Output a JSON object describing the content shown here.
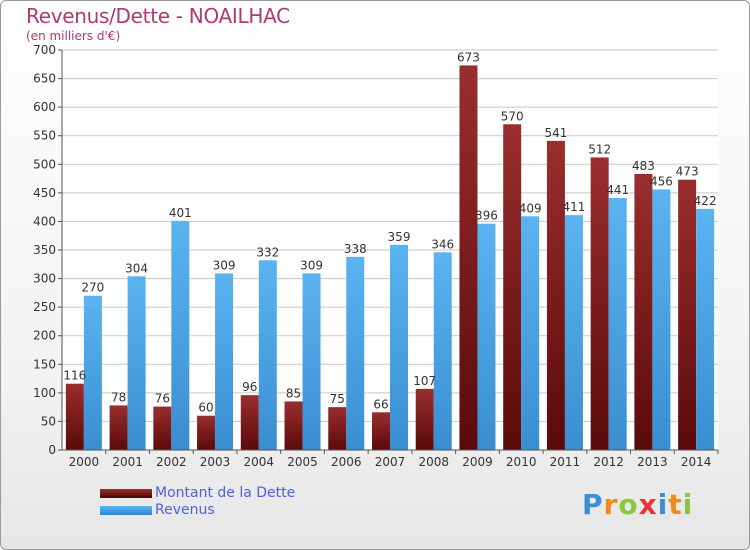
{
  "chart_data": {
    "type": "bar",
    "title": "Revenus/Dette - NOAILHAC",
    "subtitle": "(en milliers d'€)",
    "categories": [
      "2000",
      "2001",
      "2002",
      "2003",
      "2004",
      "2005",
      "2006",
      "2007",
      "2008",
      "2009",
      "2010",
      "2011",
      "2012",
      "2013",
      "2014"
    ],
    "series": [
      {
        "name": "Montant de la Dette",
        "color": "#7a1a1a",
        "values": [
          116,
          78,
          76,
          60,
          96,
          85,
          75,
          66,
          107,
          673,
          570,
          541,
          512,
          483,
          473
        ]
      },
      {
        "name": "Revenus",
        "color": "#4ba6e8",
        "values": [
          270,
          304,
          401,
          309,
          332,
          309,
          338,
          359,
          346,
          396,
          409,
          411,
          441,
          456,
          422
        ]
      }
    ],
    "ylim": [
      0,
      700
    ],
    "yticks": [
      0,
      50,
      100,
      150,
      200,
      250,
      300,
      350,
      400,
      450,
      500,
      550,
      600,
      650,
      700
    ],
    "grid": true,
    "legend_position": "bottom-left"
  },
  "logo": {
    "letters": [
      "P",
      "r",
      "o",
      "x",
      "i",
      "t",
      "i"
    ],
    "colors": [
      "#3b8fd6",
      "#f08a1c",
      "#8cc63f",
      "#e8343a",
      "#3b8fd6",
      "#f08a1c",
      "#8cc63f"
    ]
  }
}
